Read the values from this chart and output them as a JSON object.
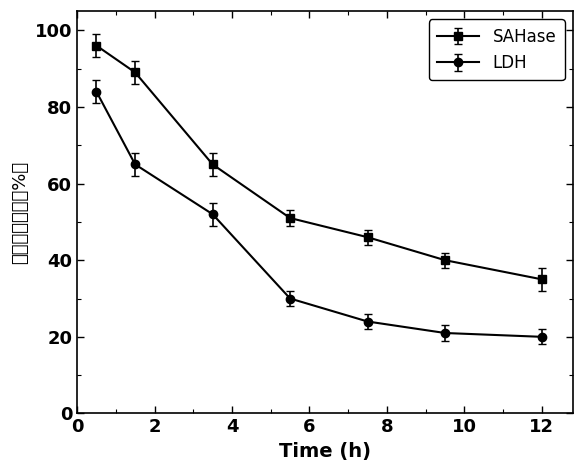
{
  "SAHase_x": [
    0.5,
    1.5,
    3.5,
    5.5,
    7.5,
    9.5,
    12
  ],
  "SAHase_y": [
    96,
    89,
    65,
    51,
    46,
    40,
    35
  ],
  "SAHase_yerr": [
    3,
    3,
    3,
    2,
    2,
    2,
    3
  ],
  "LDH_x": [
    0.5,
    1.5,
    3.5,
    5.5,
    7.5,
    9.5,
    12
  ],
  "LDH_y": [
    84,
    65,
    52,
    30,
    24,
    21,
    20
  ],
  "LDH_yerr": [
    3,
    3,
    3,
    2,
    2,
    2,
    2
  ],
  "xlabel": "Time (h)",
  "ylabel": "酥的相对活性（%）",
  "xlim": [
    0,
    12.8
  ],
  "ylim": [
    0,
    105
  ],
  "xticks": [
    0,
    2,
    4,
    6,
    8,
    10,
    12
  ],
  "yticks": [
    0,
    20,
    40,
    60,
    80,
    100
  ],
  "legend_SAHase": "SAHase",
  "legend_LDH": "LDH",
  "line_color": "#000000",
  "marker_square": "s",
  "marker_circle": "o",
  "markersize": 6,
  "linewidth": 1.5,
  "capsize": 3,
  "elinewidth": 1.2
}
